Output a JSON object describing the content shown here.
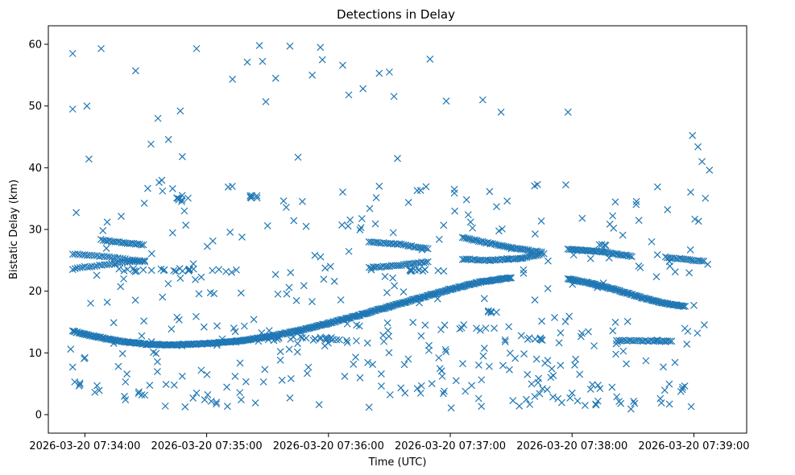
{
  "chart_data": {
    "type": "scatter",
    "title": "Detections in Delay",
    "xlabel": "Time (UTC)",
    "ylabel": "Bistatic Delay (km)",
    "marker": "x",
    "color": "#1f77b4",
    "x_unit": "seconds since 2026-03-20 07:34:00",
    "xlim": [
      -18,
      326
    ],
    "ylim": [
      -3,
      63
    ],
    "x_ticks": [
      {
        "value": 0,
        "label": "2026-03-20 07:34:00"
      },
      {
        "value": 60,
        "label": "2026-03-20 07:35:00"
      },
      {
        "value": 120,
        "label": "2026-03-20 07:36:00"
      },
      {
        "value": 180,
        "label": "2026-03-20 07:37:00"
      },
      {
        "value": 240,
        "label": "2026-03-20 07:38:00"
      },
      {
        "value": 300,
        "label": "2026-03-20 07:39:00"
      }
    ],
    "y_ticks": [
      0,
      10,
      20,
      30,
      40,
      50,
      60
    ],
    "grid": false,
    "legend": "none",
    "tracks": [
      {
        "name": "main rising track",
        "x": [
          -6,
          0,
          15,
          30,
          45,
          60,
          75,
          90,
          105,
          120,
          135,
          150,
          165,
          180,
          195,
          210
        ],
        "y": [
          13.5,
          13.0,
          12.0,
          11.4,
          11.3,
          11.5,
          11.9,
          12.6,
          13.6,
          14.8,
          16.1,
          17.5,
          18.9,
          20.3,
          21.5,
          22.2
        ],
        "step": 0.6
      },
      {
        "name": "upper track A",
        "x": [
          -6,
          0,
          15,
          30
        ],
        "y": [
          26.0,
          25.9,
          25.4,
          24.7
        ],
        "step": 1.2
      },
      {
        "name": "upper track B",
        "x": [
          -6,
          0,
          15,
          30
        ],
        "y": [
          23.6,
          23.9,
          24.5,
          25.0
        ],
        "step": 1.2
      },
      {
        "name": "upper track C",
        "x": [
          8,
          20,
          30
        ],
        "y": [
          28.3,
          27.8,
          27.5
        ],
        "step": 1.0
      },
      {
        "name": "track near 27 km",
        "x": [
          140,
          155,
          170
        ],
        "y": [
          28.0,
          27.6,
          26.8
        ],
        "step": 1.0
      },
      {
        "name": "track near 24 km",
        "x": [
          140,
          155,
          170
        ],
        "y": [
          23.8,
          24.2,
          24.8
        ],
        "step": 1.0
      },
      {
        "name": "track 07:37 upper",
        "x": [
          186,
          200,
          215,
          225
        ],
        "y": [
          28.7,
          27.7,
          26.8,
          26.3
        ],
        "step": 0.9
      },
      {
        "name": "track 07:37 lower",
        "x": [
          186,
          200,
          215,
          225
        ],
        "y": [
          25.2,
          25.0,
          25.3,
          26.0
        ],
        "step": 0.9
      },
      {
        "name": "track 07:38 upper",
        "x": [
          238,
          255,
          270
        ],
        "y": [
          26.8,
          26.4,
          25.6
        ],
        "step": 0.8
      },
      {
        "name": "track 07:38 falling",
        "x": [
          238,
          250,
          262,
          274,
          286,
          296
        ],
        "y": [
          22.0,
          21.2,
          20.2,
          19.0,
          18.0,
          17.5
        ],
        "step": 0.6
      },
      {
        "name": "track 07:39 upper",
        "x": [
          286,
          300,
          306
        ],
        "y": [
          25.5,
          25.0,
          24.8
        ],
        "step": 1.0
      },
      {
        "name": "low cluster 07:38",
        "x": [
          262,
          290
        ],
        "y": [
          12.0,
          11.9
        ],
        "step": 1.0
      }
    ],
    "clusters": [
      {
        "x": 168,
        "y": 23.4,
        "spread_x": 10,
        "spread_y": 0.2,
        "count": 12
      },
      {
        "x": 108,
        "y": 12.3,
        "spread_x": 20,
        "spread_y": 0.3,
        "count": 22
      },
      {
        "x": 45,
        "y": 23.4,
        "spread_x": 30,
        "spread_y": 0.3,
        "count": 25
      },
      {
        "x": 48,
        "y": 35.0,
        "spread_x": 3,
        "spread_y": 0.5,
        "count": 8
      },
      {
        "x": 83,
        "y": 35.3,
        "spread_x": 2,
        "spread_y": 0.2,
        "count": 6
      },
      {
        "x": 200,
        "y": 16.7,
        "spread_x": 3,
        "spread_y": 0.2,
        "count": 5
      },
      {
        "x": 223,
        "y": 12.3,
        "spread_x": 5,
        "spread_y": 0.2,
        "count": 6
      },
      {
        "x": 255,
        "y": 27.6,
        "spread_x": 2,
        "spread_y": 0.2,
        "count": 4
      }
    ],
    "scatter_noise": {
      "count": 360,
      "x_range": [
        -7,
        308
      ],
      "y_range": [
        0.8,
        59.8
      ],
      "seed": 7
    },
    "points": [
      [
        -6,
        58.5
      ],
      [
        -6,
        49.5
      ],
      [
        1,
        50
      ],
      [
        8,
        59.3
      ],
      [
        25,
        55.7
      ],
      [
        36,
        48
      ],
      [
        47,
        49.2
      ],
      [
        55,
        59.3
      ],
      [
        80,
        57.1
      ],
      [
        86,
        59.8
      ],
      [
        94,
        54.5
      ],
      [
        101,
        59.7
      ],
      [
        112,
        55
      ],
      [
        116,
        59.5
      ],
      [
        117,
        57.5
      ],
      [
        127,
        56.6
      ],
      [
        130,
        51.8
      ],
      [
        137,
        52.8
      ],
      [
        145,
        55.3
      ],
      [
        150,
        55.5
      ],
      [
        170,
        57.6
      ],
      [
        178,
        50.8
      ],
      [
        196,
        51
      ],
      [
        205,
        49
      ],
      [
        238,
        49
      ],
      [
        302,
        43.4
      ],
      [
        304,
        41
      ],
      [
        2,
        41.4
      ],
      [
        48,
        41.8
      ],
      [
        105,
        41.7
      ],
      [
        145,
        37
      ],
      [
        154,
        41.5
      ],
      [
        11,
        31.2
      ],
      [
        49,
        33
      ],
      [
        90,
        30.6
      ],
      [
        109,
        30.5
      ],
      [
        136,
        30.3
      ],
      [
        182,
        35.9
      ],
      [
        182,
        36.5
      ],
      [
        190,
        31.2
      ],
      [
        208,
        34.6
      ],
      [
        245,
        31.8
      ],
      [
        260,
        32.2
      ],
      [
        287,
        33.2
      ],
      [
        -7,
        10.6
      ],
      [
        -6,
        7.7
      ],
      [
        -5,
        5.3
      ],
      [
        11,
        18.2
      ],
      [
        20,
        5.3
      ],
      [
        20,
        2.4
      ],
      [
        28,
        3.2
      ],
      [
        40,
        4.9
      ],
      [
        55,
        3.5
      ],
      [
        59,
        2.4
      ],
      [
        74,
        6.2
      ],
      [
        77,
        2.4
      ],
      [
        84,
        1.9
      ],
      [
        88,
        5.3
      ],
      [
        101,
        2.7
      ],
      [
        128,
        6.2
      ],
      [
        140,
        1.2
      ],
      [
        146,
        6.6
      ],
      [
        177,
        3.8
      ],
      [
        214,
        1.4
      ],
      [
        218,
        6.5
      ],
      [
        224,
        3.4
      ],
      [
        239,
        2.7
      ],
      [
        240,
        3.5
      ],
      [
        264,
        1.8
      ],
      [
        269,
        0.9
      ],
      [
        284,
        1.9
      ],
      [
        297,
        13.5
      ],
      [
        300,
        17.7
      ]
    ]
  }
}
